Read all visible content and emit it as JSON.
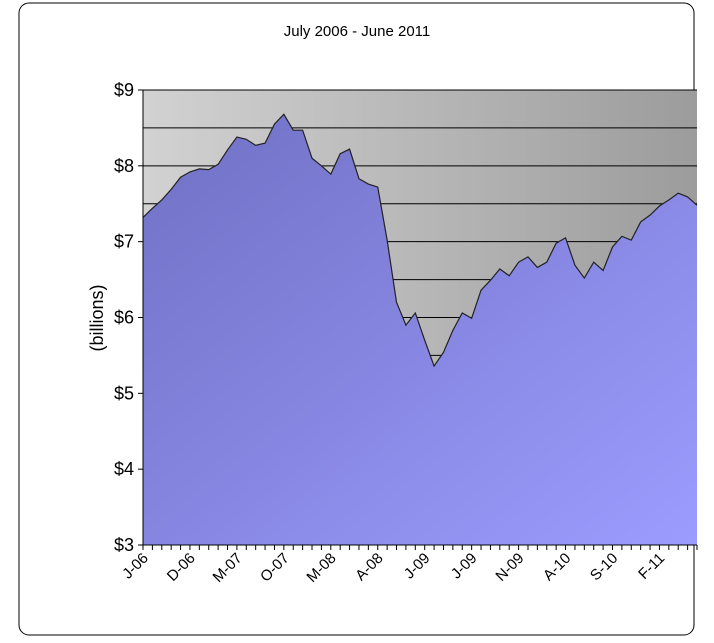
{
  "chart_data": {
    "type": "area",
    "title": "July 2006 - June 2011",
    "ylabel": "(billions)",
    "categories": [
      "J-06",
      null,
      null,
      null,
      null,
      "D-06",
      null,
      null,
      null,
      null,
      "M-07",
      null,
      null,
      null,
      null,
      "O-07",
      null,
      null,
      null,
      null,
      "M-08",
      null,
      null,
      null,
      null,
      "A-08",
      null,
      null,
      null,
      null,
      "J-09",
      null,
      null,
      null,
      null,
      "J-09",
      null,
      null,
      null,
      null,
      "N-09",
      null,
      null,
      null,
      null,
      "A-10",
      null,
      null,
      null,
      null,
      "S-10",
      null,
      null,
      null,
      null,
      "F-11",
      null,
      null,
      null,
      null
    ],
    "values": [
      7.32,
      7.44,
      7.55,
      7.69,
      7.85,
      7.92,
      7.96,
      7.95,
      8.02,
      8.21,
      8.38,
      8.35,
      8.27,
      8.3,
      8.55,
      8.68,
      8.47,
      8.47,
      8.1,
      8.0,
      7.89,
      8.16,
      8.22,
      7.83,
      7.76,
      7.72,
      7.02,
      6.2,
      5.9,
      6.06,
      5.7,
      5.36,
      5.54,
      5.83,
      6.06,
      5.99,
      6.36,
      6.49,
      6.64,
      6.55,
      6.73,
      6.8,
      6.66,
      6.73,
      6.98,
      7.05,
      6.69,
      6.52,
      6.73,
      6.62,
      6.93,
      7.07,
      7.02,
      7.26,
      7.35,
      7.47,
      7.55,
      7.64,
      7.59,
      7.48
    ],
    "ylim": [
      3,
      9
    ],
    "yticks": [
      {
        "value": 3,
        "label": "$3"
      },
      {
        "value": 4,
        "label": "$4"
      },
      {
        "value": 5,
        "label": "$5"
      },
      {
        "value": 6,
        "label": "$6"
      },
      {
        "value": 7,
        "label": "$7"
      },
      {
        "value": 8,
        "label": "$8"
      },
      {
        "value": 9,
        "label": "$9"
      }
    ],
    "ygrid": [
      3.5,
      4,
      4.5,
      5,
      5.5,
      6,
      6.5,
      7,
      7.5,
      8,
      8.5,
      9
    ],
    "color": "#8a8ae8"
  }
}
